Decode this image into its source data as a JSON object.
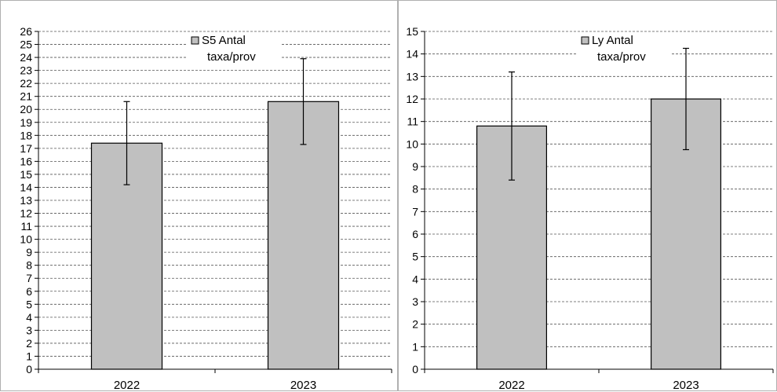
{
  "chart_data": [
    {
      "type": "bar",
      "title": "",
      "xlabel": "",
      "ylabel": "",
      "categories": [
        "2022",
        "2023"
      ],
      "series": [
        {
          "name": "S5 Antal taxa/prov",
          "values": [
            17.4,
            20.6
          ],
          "error": [
            3.2,
            3.3
          ],
          "color": "#c0c0c0"
        }
      ],
      "ylim": [
        0,
        26
      ],
      "ytick_step": 1,
      "grid": true,
      "legend": {
        "lines": [
          "S5 Antal",
          "taxa/prov"
        ],
        "position": "top-center"
      }
    },
    {
      "type": "bar",
      "title": "",
      "xlabel": "",
      "ylabel": "",
      "categories": [
        "2022",
        "2023"
      ],
      "series": [
        {
          "name": "Ly Antal taxa/prov",
          "values": [
            10.8,
            12.0
          ],
          "error": [
            2.4,
            2.25
          ],
          "color": "#c0c0c0"
        }
      ],
      "ylim": [
        0,
        15
      ],
      "ytick_step": 1,
      "grid": true,
      "legend": {
        "lines": [
          "Ly Antal",
          "taxa/prov"
        ],
        "position": "top-center"
      }
    }
  ]
}
